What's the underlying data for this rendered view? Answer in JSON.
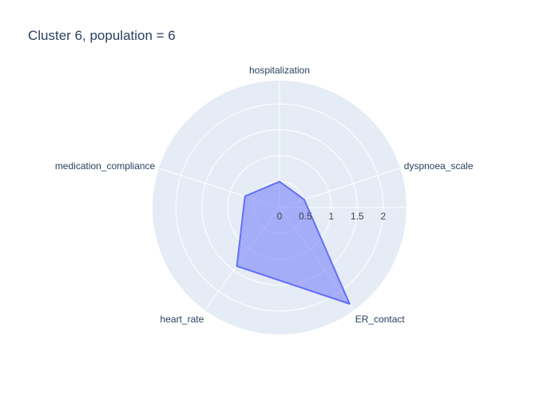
{
  "chart_data": {
    "type": "radar",
    "title": "Cluster 6, population = 6",
    "categories": [
      "hospitalization",
      "dyspnoea_scale",
      "ER_contact",
      "heart_rate",
      "medication_compliance"
    ],
    "series": [
      {
        "values": [
          0.5,
          0.5,
          2.3,
          1.4,
          0.7
        ]
      }
    ],
    "radial_range": [
      0,
      2.45
    ],
    "radial_ticks": [
      0,
      0.5,
      1,
      1.5,
      2
    ],
    "radial_tick_labels": [
      "0",
      "0.5",
      "1",
      "1.5",
      "2"
    ],
    "grid": true,
    "colors": {
      "polar_background": "#e5ecf6",
      "gridline": "#ffffff",
      "series_line": "#636efa",
      "series_fill": "#636efa",
      "text": "#2a3f5f"
    }
  }
}
